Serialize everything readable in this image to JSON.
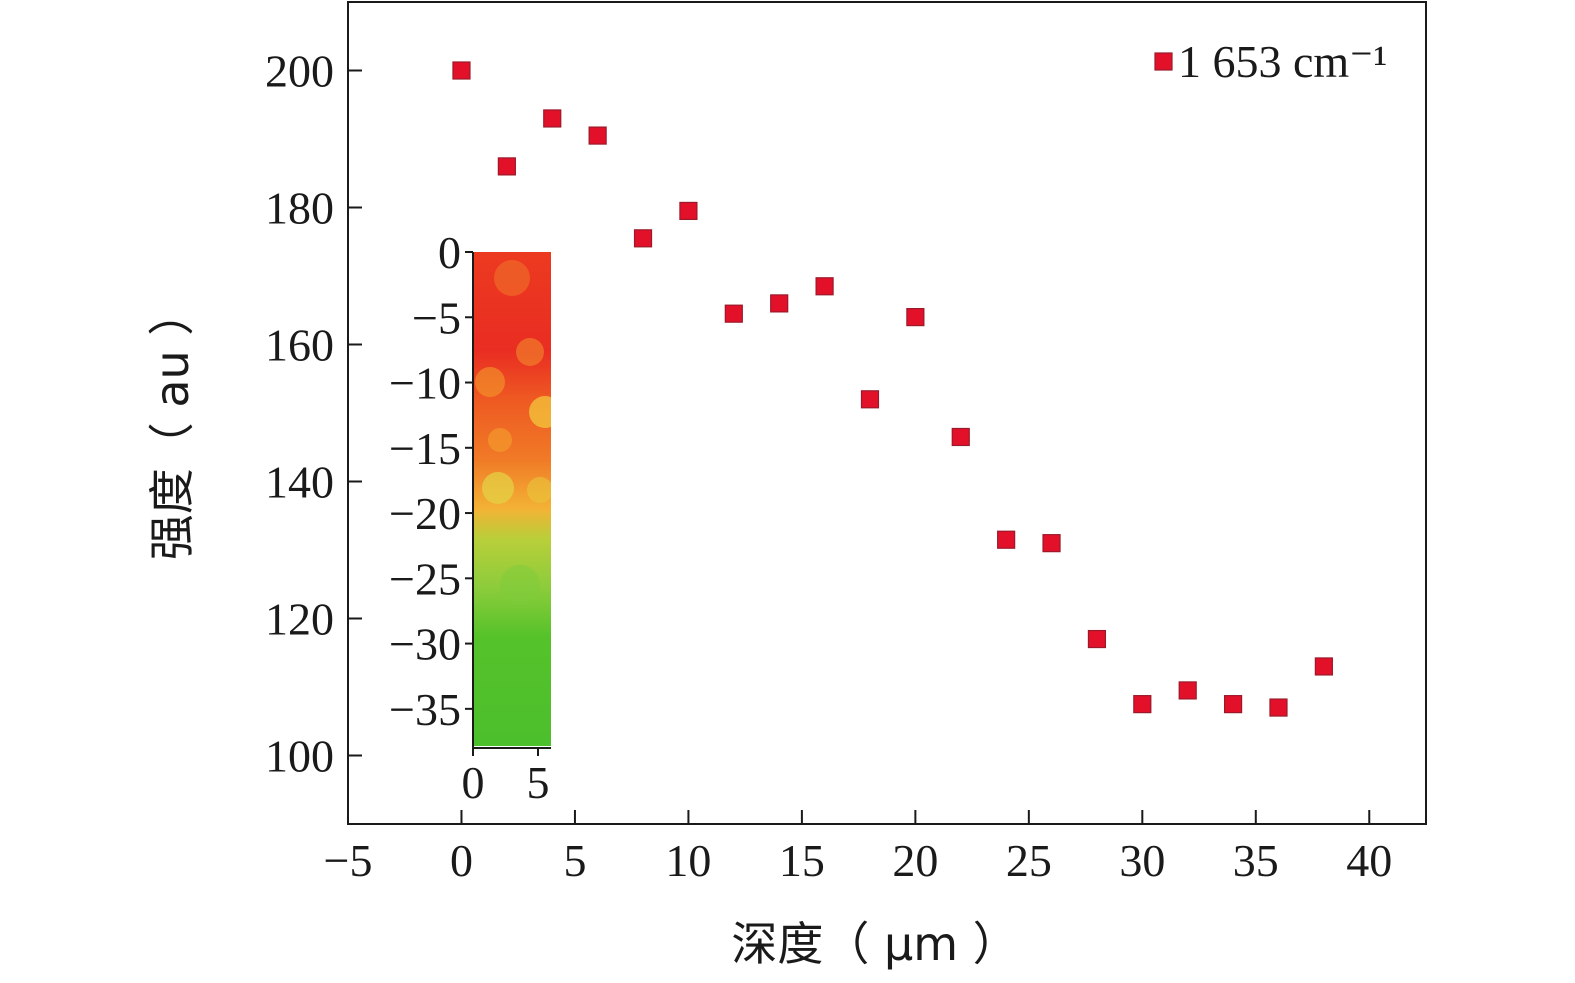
{
  "chart_data": {
    "type": "scatter",
    "xlabel": "深度（ μm ）",
    "ylabel": "强度（ au ）",
    "xlim": [
      -5,
      42.5
    ],
    "ylim": [
      90,
      210
    ],
    "xticks": [
      -5,
      0,
      5,
      10,
      15,
      20,
      25,
      30,
      35,
      40
    ],
    "yticks": [
      100,
      120,
      140,
      160,
      180,
      200
    ],
    "xtick_labels": [
      "−5",
      "0",
      "5",
      "10",
      "15",
      "20",
      "25",
      "30",
      "35",
      "40"
    ],
    "ytick_labels": [
      "100",
      "120",
      "140",
      "160",
      "180",
      "200"
    ],
    "legend": {
      "position": "top-right",
      "entries": [
        "1 653 cm⁻¹"
      ]
    },
    "series": [
      {
        "name": "1 653 cm⁻¹",
        "color": "#e3102a",
        "marker": "square",
        "x": [
          0,
          2,
          4,
          6,
          8,
          10,
          12,
          14,
          16,
          18,
          20,
          22,
          24,
          26,
          28,
          30,
          32,
          34,
          36,
          38
        ],
        "y": [
          200,
          186,
          193,
          190.5,
          175.5,
          179.5,
          164.5,
          166,
          168.5,
          152,
          164,
          146.5,
          131.5,
          131,
          117,
          107.5,
          109.5,
          107.5,
          107,
          113
        ]
      }
    ],
    "inset": {
      "type": "heatmap",
      "xlim": [
        0,
        6
      ],
      "ylim": [
        -38,
        0
      ],
      "xticks": [
        0,
        5
      ],
      "yticks": [
        0,
        -5,
        -10,
        -15,
        -20,
        -25,
        -30,
        -35
      ],
      "xtick_labels": [
        "0",
        "5"
      ],
      "ytick_labels": [
        "0",
        "−5",
        "−10",
        "−15",
        "−20",
        "−25",
        "−30",
        "−35"
      ],
      "colors": {
        "high": "#ea2a1e",
        "mid": "#f7b52e",
        "low": "#4cc22a"
      }
    }
  }
}
